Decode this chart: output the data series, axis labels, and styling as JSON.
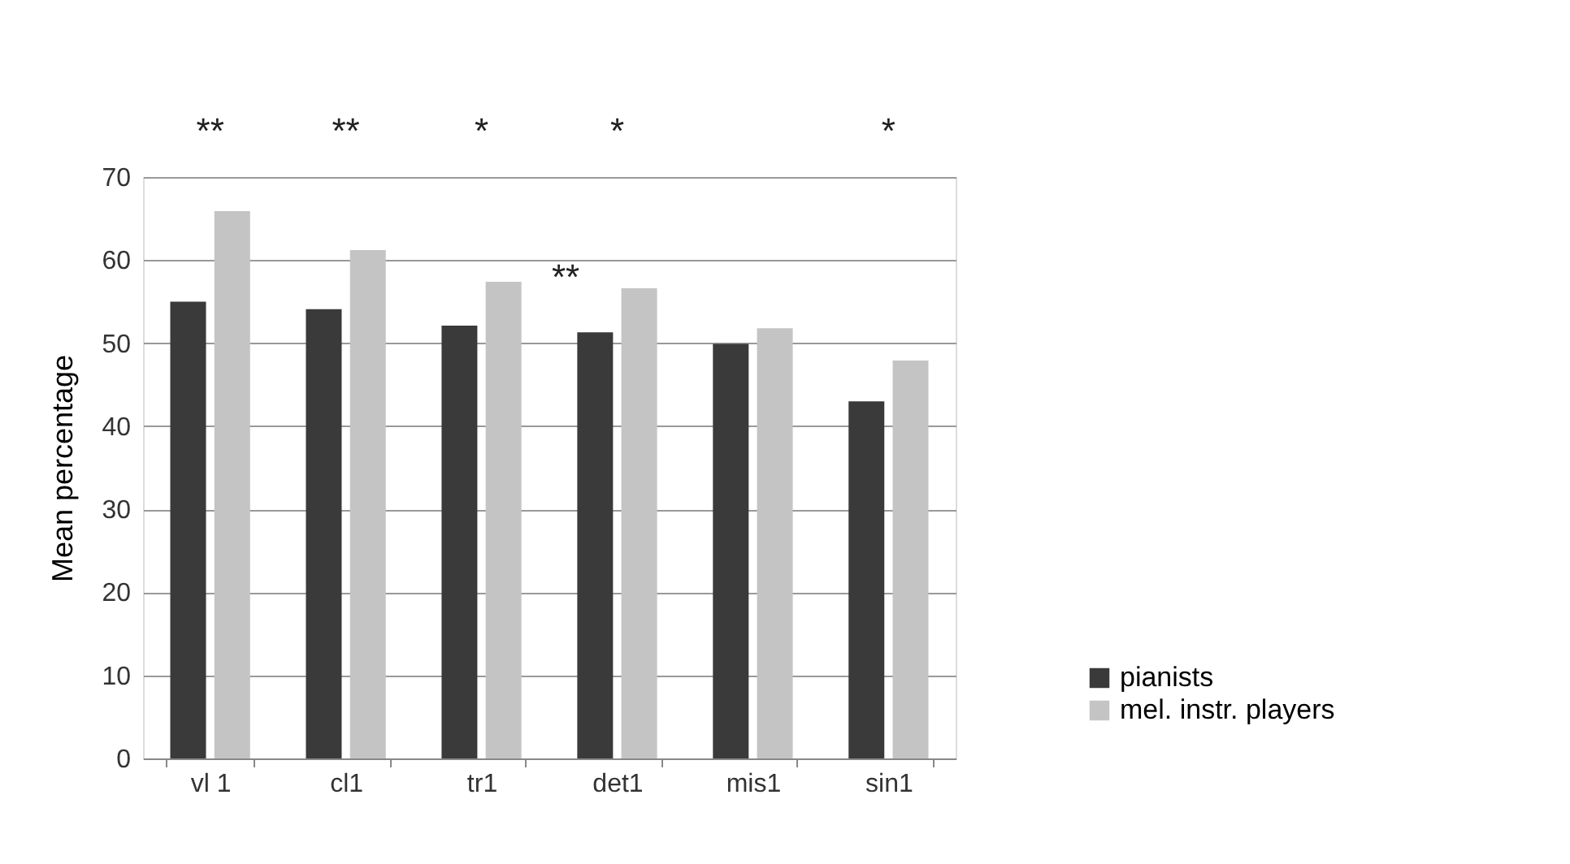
{
  "chart_data": {
    "type": "bar",
    "ylabel": "Mean percentage",
    "categories": [
      "vl 1",
      "cl1",
      "tr1",
      "det1",
      "mis1",
      "sin1"
    ],
    "series": [
      {
        "name": "pianists",
        "color": "#3a3a3a",
        "values": [
          55.0,
          54.1,
          52.1,
          51.3,
          49.9,
          43.0
        ]
      },
      {
        "name": "mel. instr. players",
        "color": "#c4c4c4",
        "values": [
          65.9,
          61.2,
          57.4,
          56.6,
          51.8,
          47.9
        ]
      }
    ],
    "ylim": [
      0,
      70
    ],
    "yticks": [
      0,
      10,
      20,
      30,
      40,
      50,
      60,
      70
    ],
    "grid": "y",
    "legend": "right",
    "annotations": [
      "**",
      "**",
      "*",
      "*",
      "*",
      "**"
    ]
  }
}
